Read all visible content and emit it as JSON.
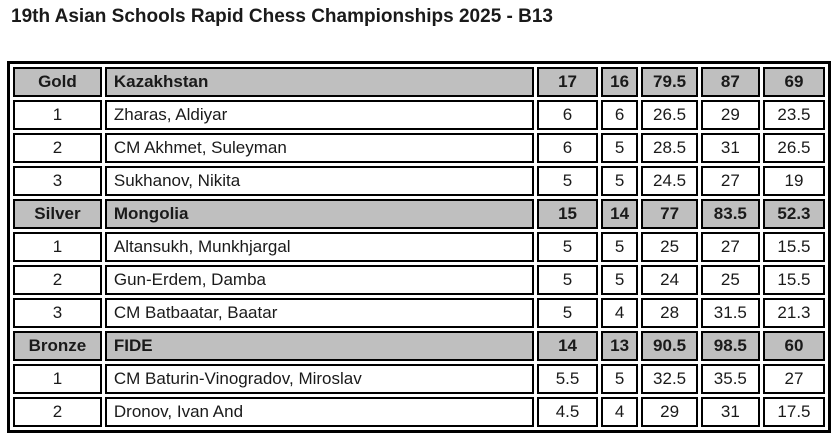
{
  "title": "19th Asian Schools Rapid Chess Championships 2025 - B13",
  "colors": {
    "header_bg": "#bfbfbf",
    "border": "#000000",
    "page_bg": "#ffffff"
  },
  "table": {
    "groups": [
      {
        "medal": "Gold",
        "team": "Kazakhstan",
        "totals": [
          "17",
          "16",
          "79.5",
          "87",
          "69"
        ],
        "players": [
          {
            "rank": "1",
            "name": "Zharas, Aldiyar",
            "scores": [
              "6",
              "6",
              "26.5",
              "29",
              "23.5"
            ]
          },
          {
            "rank": "2",
            "name": "CM Akhmet, Suleyman",
            "scores": [
              "6",
              "5",
              "28.5",
              "31",
              "26.5"
            ]
          },
          {
            "rank": "3",
            "name": "Sukhanov, Nikita",
            "scores": [
              "5",
              "5",
              "24.5",
              "27",
              "19"
            ]
          }
        ]
      },
      {
        "medal": "Silver",
        "team": "Mongolia",
        "totals": [
          "15",
          "14",
          "77",
          "83.5",
          "52.3"
        ],
        "players": [
          {
            "rank": "1",
            "name": "Altansukh, Munkhjargal",
            "scores": [
              "5",
              "5",
              "25",
              "27",
              "15.5"
            ]
          },
          {
            "rank": "2",
            "name": "Gun-Erdem, Damba",
            "scores": [
              "5",
              "5",
              "24",
              "25",
              "15.5"
            ]
          },
          {
            "rank": "3",
            "name": "CM Batbaatar, Baatar",
            "scores": [
              "5",
              "4",
              "28",
              "31.5",
              "21.3"
            ]
          }
        ]
      },
      {
        "medal": "Bronze",
        "team": "FIDE",
        "totals": [
          "14",
          "13",
          "90.5",
          "98.5",
          "60"
        ],
        "players": [
          {
            "rank": "1",
            "name": "CM Baturin-Vinogradov, Miroslav",
            "scores": [
              "5.5",
              "5",
              "32.5",
              "35.5",
              "27"
            ]
          },
          {
            "rank": "2",
            "name": "Dronov, Ivan And",
            "scores": [
              "4.5",
              "4",
              "29",
              "31",
              "17.5"
            ]
          }
        ]
      }
    ]
  }
}
